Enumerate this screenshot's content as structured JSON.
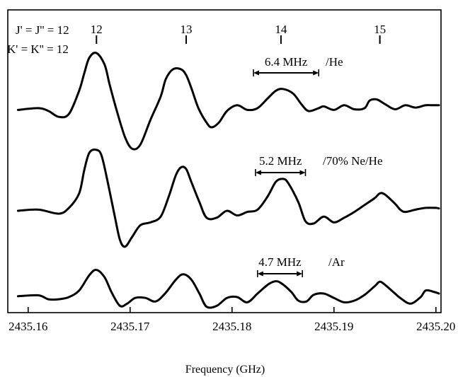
{
  "chart_data": {
    "type": "line",
    "title": "",
    "xlabel": "Frequency (GHz)",
    "ylabel": "",
    "xlim": [
      2435.158,
      2435.2005
    ],
    "x_ticks": [
      2435.16,
      2435.17,
      2435.18,
      2435.19,
      2435.2
    ],
    "x_tick_labels": [
      "2435.16",
      "2435.17",
      "2435.18",
      "2435.19",
      "2435.20"
    ],
    "grid": false,
    "top_annotations": {
      "j_label": "J' = J'' = 12",
      "k_label": "K' = K'' = 12",
      "transitions": [
        {
          "label": "12",
          "x": 2435.1667
        },
        {
          "label": "13",
          "x": 2435.1755
        },
        {
          "label": "14",
          "x": 2435.1848
        },
        {
          "label": "15",
          "x": 2435.1945
        }
      ]
    },
    "series": [
      {
        "name": "/He",
        "linewidth_label": "6.4 MHz",
        "linewidth_bar": [
          2435.1821,
          2435.1885
        ],
        "x": [
          2435.159,
          2435.161,
          2435.162,
          2435.163,
          2435.164,
          2435.165,
          2435.1655,
          2435.166,
          2435.1667,
          2435.1675,
          2435.168,
          2435.1687,
          2435.1695,
          2435.1702,
          2435.171,
          2435.172,
          2435.173,
          2435.1735,
          2435.1742,
          2435.175,
          2435.1755,
          2435.176,
          2435.1767,
          2435.1775,
          2435.178,
          2435.1787,
          2435.1795,
          2435.1805,
          2435.1815,
          2435.1825,
          2435.1835,
          2435.1843,
          2435.185,
          2435.186,
          2435.1868,
          2435.1875,
          2435.1885,
          2435.189,
          2435.19,
          2435.191,
          2435.192,
          2435.193,
          2435.1935,
          2435.1942,
          2435.195,
          2435.196,
          2435.197,
          2435.198,
          2435.199,
          2435.1998,
          2435.2003
        ],
        "y": [
          0.02,
          0.05,
          0.0,
          -0.1,
          -0.05,
          0.35,
          0.65,
          0.92,
          1.0,
          0.8,
          0.45,
          0.0,
          -0.45,
          -0.65,
          -0.58,
          -0.15,
          0.25,
          0.55,
          0.72,
          0.72,
          0.62,
          0.4,
          0.05,
          -0.2,
          -0.28,
          -0.2,
          0.0,
          0.1,
          0.02,
          0.05,
          0.22,
          0.35,
          0.38,
          0.3,
          0.12,
          0.0,
          0.05,
          0.08,
          0.02,
          0.1,
          0.03,
          0.05,
          0.18,
          0.2,
          0.12,
          0.03,
          0.1,
          0.06,
          0.1,
          0.1,
          0.1
        ]
      },
      {
        "name": "/70% Ne/He",
        "linewidth_label": "5.2 MHz",
        "linewidth_bar": [
          2435.1823,
          2435.1872
        ],
        "x": [
          2435.159,
          2435.161,
          2435.163,
          2435.164,
          2435.165,
          2435.1655,
          2435.166,
          2435.1667,
          2435.1672,
          2435.1678,
          2435.1685,
          2435.169,
          2435.1695,
          2435.1702,
          2435.171,
          2435.172,
          2435.173,
          2435.1738,
          2435.1745,
          2435.175,
          2435.1755,
          2435.176,
          2435.1768,
          2435.1775,
          2435.1785,
          2435.1795,
          2435.1805,
          2435.1815,
          2435.1825,
          2435.1835,
          2435.1843,
          2435.185,
          2435.1855,
          2435.1865,
          2435.1872,
          2435.188,
          2435.189,
          2435.19,
          2435.191,
          2435.192,
          2435.193,
          2435.194,
          2435.1945,
          2435.195,
          2435.196,
          2435.1965,
          2435.197,
          2435.198,
          2435.199,
          2435.2,
          2435.2003
        ],
        "y": [
          0.0,
          0.02,
          -0.05,
          0.05,
          0.3,
          0.7,
          1.0,
          1.05,
          0.95,
          0.5,
          -0.1,
          -0.5,
          -0.62,
          -0.45,
          -0.25,
          -0.2,
          -0.1,
          0.25,
          0.62,
          0.75,
          0.72,
          0.5,
          0.15,
          -0.12,
          -0.12,
          0.0,
          -0.08,
          -0.02,
          0.02,
          0.25,
          0.5,
          0.55,
          0.48,
          0.15,
          -0.18,
          -0.22,
          -0.1,
          -0.2,
          -0.12,
          -0.02,
          0.1,
          0.22,
          0.3,
          0.28,
          0.12,
          0.02,
          -0.02,
          0.02,
          0.05,
          0.05,
          0.04
        ]
      },
      {
        "name": "/Ar",
        "linewidth_label": "4.7 MHz",
        "linewidth_bar": [
          2435.1825,
          2435.1869
        ],
        "x": [
          2435.159,
          2435.161,
          2435.162,
          2435.163,
          2435.164,
          2435.165,
          2435.166,
          2435.1667,
          2435.1675,
          2435.1682,
          2435.169,
          2435.1697,
          2435.1705,
          2435.1715,
          2435.1725,
          2435.1735,
          2435.1745,
          2435.1752,
          2435.176,
          2435.1768,
          2435.1775,
          2435.1785,
          2435.1795,
          2435.1805,
          2435.1815,
          2435.1825,
          2435.1835,
          2435.1842,
          2435.1848,
          2435.1858,
          2435.1865,
          2435.1873,
          2435.188,
          2435.189,
          2435.19,
          2435.191,
          2435.192,
          2435.193,
          2435.194,
          2435.1945,
          2435.195,
          2435.1958,
          2435.1965,
          2435.1975,
          2435.1985,
          2435.199,
          2435.1998,
          2435.2003
        ],
        "y": [
          0.02,
          0.04,
          -0.05,
          -0.05,
          0.0,
          0.15,
          0.5,
          0.62,
          0.45,
          0.1,
          -0.2,
          -0.15,
          -0.02,
          -0.02,
          -0.1,
          0.1,
          0.4,
          0.52,
          0.4,
          0.08,
          -0.22,
          -0.2,
          -0.02,
          0.0,
          -0.12,
          0.08,
          0.28,
          0.36,
          0.32,
          0.12,
          -0.08,
          -0.1,
          0.05,
          0.08,
          -0.02,
          -0.12,
          -0.08,
          0.05,
          0.25,
          0.35,
          0.28,
          0.12,
          -0.02,
          -0.15,
          0.0,
          0.15,
          0.12,
          0.08
        ]
      }
    ]
  }
}
